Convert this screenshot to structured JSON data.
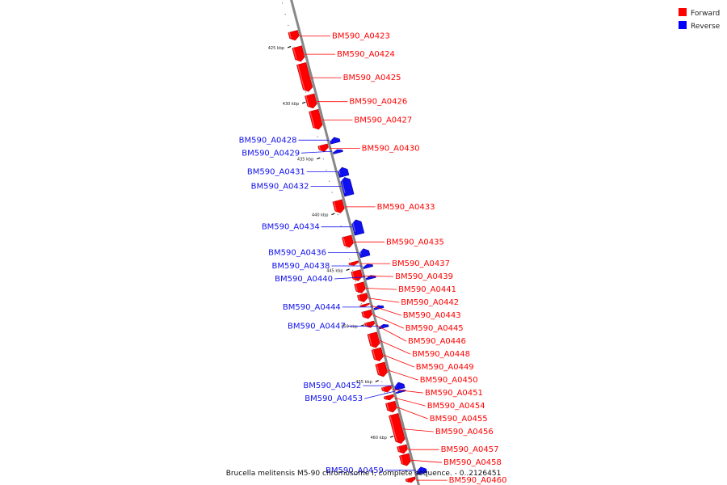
{
  "caption": "Brucella melitensis M5-90 chromosome I, complete sequence. - 0..2126451",
  "legend": [
    {
      "label": "Forward",
      "color": "#ff0000"
    },
    {
      "label": "Reverse",
      "color": "#0000ff"
    }
  ],
  "colors": {
    "forward": "#ff0000",
    "reverse": "#1010ee",
    "backbone": "#888888"
  },
  "ticks": [
    {
      "label": "425 kbp",
      "kbp": 425
    },
    {
      "label": "430 kbp",
      "kbp": 430
    },
    {
      "label": "435 kbp",
      "kbp": 435
    },
    {
      "label": "440 kbp",
      "kbp": 440
    },
    {
      "label": "445 kbp",
      "kbp": 445
    },
    {
      "label": "450 kbp",
      "kbp": 450
    },
    {
      "label": "455 kbp",
      "kbp": 455
    },
    {
      "label": "460 kbp",
      "kbp": 460
    }
  ],
  "genes": [
    {
      "label": "BM590_A0423",
      "strand": "forward",
      "start_kbp": 423.4,
      "end_kbp": 424.2
    },
    {
      "label": "BM590_A0424",
      "strand": "forward",
      "start_kbp": 424.8,
      "end_kbp": 426.1
    },
    {
      "label": "BM590_A0425",
      "strand": "forward",
      "start_kbp": 426.3,
      "end_kbp": 428.8
    },
    {
      "label": "BM590_A0426",
      "strand": "forward",
      "start_kbp": 429.1,
      "end_kbp": 430.3
    },
    {
      "label": "BM590_A0427",
      "strand": "forward",
      "start_kbp": 430.5,
      "end_kbp": 432.2
    },
    {
      "label": "BM590_A0428",
      "strand": "reverse",
      "start_kbp": 433.2,
      "end_kbp": 433.7
    },
    {
      "label": "BM590_A0430",
      "strand": "forward",
      "start_kbp": 433.6,
      "end_kbp": 434.2
    },
    {
      "label": "BM590_A0429",
      "strand": "reverse",
      "start_kbp": 434.3,
      "end_kbp": 434.6
    },
    {
      "label": "BM590_A0431",
      "strand": "reverse",
      "start_kbp": 435.9,
      "end_kbp": 436.7
    },
    {
      "label": "BM590_A0432",
      "strand": "reverse",
      "start_kbp": 436.8,
      "end_kbp": 438.4
    },
    {
      "label": "BM590_A0433",
      "strand": "forward",
      "start_kbp": 438.6,
      "end_kbp": 439.7
    },
    {
      "label": "BM590_A0434",
      "strand": "reverse",
      "start_kbp": 440.6,
      "end_kbp": 441.9
    },
    {
      "label": "BM590_A0435",
      "strand": "forward",
      "start_kbp": 441.8,
      "end_kbp": 442.8
    },
    {
      "label": "BM590_A0436",
      "strand": "reverse",
      "start_kbp": 443.2,
      "end_kbp": 443.9
    },
    {
      "label": "BM590_A0437",
      "strand": "forward",
      "start_kbp": 444.1,
      "end_kbp": 444.4
    },
    {
      "label": "BM590_A0438",
      "strand": "reverse",
      "start_kbp": 444.6,
      "end_kbp": 444.9
    },
    {
      "label": "BM590_A0439",
      "strand": "forward",
      "start_kbp": 444.9,
      "end_kbp": 445.8
    },
    {
      "label": "BM590_A0440",
      "strand": "reverse",
      "start_kbp": 445.6,
      "end_kbp": 445.9
    },
    {
      "label": "BM590_A0441",
      "strand": "forward",
      "start_kbp": 446.0,
      "end_kbp": 446.9
    },
    {
      "label": "BM590_A0442",
      "strand": "forward",
      "start_kbp": 447.0,
      "end_kbp": 447.7
    },
    {
      "label": "BM590_A0443",
      "strand": "forward",
      "start_kbp": 447.9,
      "end_kbp": 448.1
    },
    {
      "label": "BM590_A0444",
      "strand": "reverse",
      "start_kbp": 448.3,
      "end_kbp": 448.6
    },
    {
      "label": "BM590_A0445",
      "strand": "forward",
      "start_kbp": 448.5,
      "end_kbp": 449.2
    },
    {
      "label": "BM590_A0446",
      "strand": "forward",
      "start_kbp": 449.5,
      "end_kbp": 450.0
    },
    {
      "label": "BM590_A0447",
      "strand": "reverse",
      "start_kbp": 450.0,
      "end_kbp": 450.3
    },
    {
      "label": "BM590_A0448",
      "strand": "forward",
      "start_kbp": 450.5,
      "end_kbp": 451.8
    },
    {
      "label": "BM590_A0449",
      "strand": "forward",
      "start_kbp": 451.9,
      "end_kbp": 453.0
    },
    {
      "label": "BM590_A0450",
      "strand": "forward",
      "start_kbp": 453.2,
      "end_kbp": 454.4
    },
    {
      "label": "BM590_A0452",
      "strand": "reverse",
      "start_kbp": 455.2,
      "end_kbp": 455.8
    },
    {
      "label": "BM590_A0451",
      "strand": "forward",
      "start_kbp": 455.3,
      "end_kbp": 455.8
    },
    {
      "label": "BM590_A0453",
      "strand": "reverse",
      "start_kbp": 455.9,
      "end_kbp": 456.1
    },
    {
      "label": "BM590_A0454",
      "strand": "forward",
      "start_kbp": 456.1,
      "end_kbp": 456.5
    },
    {
      "label": "BM590_A0455",
      "strand": "forward",
      "start_kbp": 456.7,
      "end_kbp": 457.6
    },
    {
      "label": "BM590_A0456",
      "strand": "forward",
      "start_kbp": 457.8,
      "end_kbp": 460.4
    },
    {
      "label": "BM590_A0457",
      "strand": "forward",
      "start_kbp": 460.6,
      "end_kbp": 461.3
    },
    {
      "label": "BM590_A0458",
      "strand": "forward",
      "start_kbp": 461.4,
      "end_kbp": 462.4
    },
    {
      "label": "BM590_A0459",
      "strand": "reverse",
      "start_kbp": 462.8,
      "end_kbp": 463.4
    },
    {
      "label": "BM590_A0460",
      "strand": "forward",
      "start_kbp": 463.5,
      "end_kbp": 463.9
    }
  ]
}
